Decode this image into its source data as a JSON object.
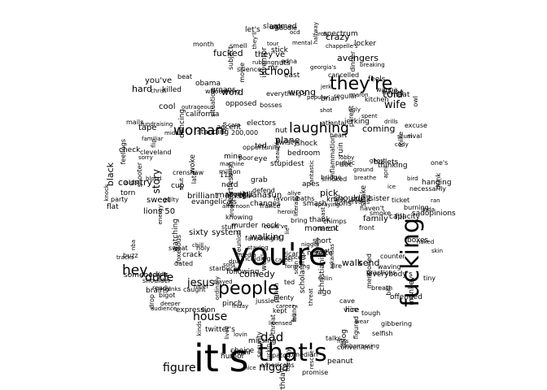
{
  "big_words": {
    "its": "it's",
    "youre": "you're",
    "people": "people",
    "thats": "that's",
    "theyre": "they're",
    "fucking": "fucking",
    "laughing": "laughing",
    "woman": "woman",
    "hey": "hey",
    "dude": "dude",
    "dad": "dad",
    "jesus": "jesus",
    "house": "house",
    "nigga": "nigga",
    "figure": "figure",
    "school": "school",
    "told": "told",
    "wife": "wife",
    "coming": "coming",
    "fucked": "fucked",
    "theyve": "they've",
    "youve": "you've",
    "hard": "hard",
    "cool": "cool",
    "country": "country",
    "story": "story",
    "walking": "walking",
    "comedy": "comedy",
    "word": "word",
    "black": "black",
    "crazy": "crazy",
    "avengers": "avengers",
    "walk": "walk",
    "send": "send",
    "family": "family",
    "fill": "fill",
    "moment": "moment",
    "plane": "plane",
    "pick": "pick",
    "lions": "lions 50",
    "sixty": "sixty",
    "system": "system",
    "brilliant": "brilliant",
    "marvel": "marvel",
    "iguanas": "iguanas",
    "fun": "fun",
    "sweet": "sweet",
    "tape": "tape",
    "wrong": "wrong",
    "shouldnt": "shouldn't"
  },
  "small_words": [
    "11",
    "jackson",
    "holy",
    "counter",
    "vice",
    "skin",
    "tracks",
    "cleveland",
    "ice",
    "including",
    "fanstraight",
    "spent",
    "ready",
    "fell",
    "pilots",
    "pinch",
    "regular",
    "tuesday",
    "ocd",
    "feels",
    "smoke",
    "trunks",
    "alive",
    "knowing",
    "kitchen",
    "iron",
    "wear",
    "heart",
    "roast",
    "dinner",
    "front",
    "sold",
    "christianity",
    "mentioned",
    "france",
    "everything's",
    "accent",
    "fantastic",
    "could've",
    "caught",
    "stuff",
    "party",
    "one's",
    "smell",
    "necessarily",
    "tiny",
    "bigot",
    "buzz",
    "hitler",
    "figured",
    "shut",
    "it'll",
    "care",
    "drills",
    "ago",
    "heartless",
    "kept",
    "spraying",
    "feelings",
    "hung",
    "they'll",
    "jussie",
    "evangelicals",
    "bullets",
    "murder",
    "rubbing",
    "ordinary",
    "killed",
    "machine",
    "standing",
    "million",
    "mr",
    "reunion",
    "excuse",
    "parent",
    "following",
    "played",
    "dancing",
    "cave",
    "blood",
    "situation",
    "energy",
    "marc.k",
    "month",
    "ran",
    "nuts",
    "lived",
    "starbucks",
    "tough",
    "career",
    "licensed",
    "smoked",
    "shoot",
    "staying",
    "jerk",
    "opposed",
    "patch",
    "sweat",
    "guilty",
    "electors",
    "nba",
    "favorite",
    "neck",
    "defend",
    "subject",
    "spectrum",
    "audience",
    "crack",
    "georgia's",
    "poor",
    "waving",
    "bird",
    "ground",
    "drop",
    "linda",
    "baths",
    "literally",
    "flip",
    "afternoon",
    "familiar",
    "humor",
    "lions",
    "edna",
    "ruin",
    "choice",
    "plenty",
    "sister",
    "hanging",
    "science",
    "stupid",
    "stick",
    "halfway",
    "foxelious",
    "punch",
    "fallin",
    "bill",
    "nigger",
    "attempt",
    "thinking",
    "selfish",
    "drown",
    "200,000",
    "jerking",
    "hoodie",
    "wanna",
    "knee",
    "shake",
    "missing",
    "rescue",
    "breaking",
    "shooter",
    "minute",
    "stuck",
    "friday",
    "aids",
    "grown",
    "security",
    "ghost",
    "inflammation",
    "monkey",
    "breath",
    "public",
    "shoulder",
    "ted",
    "scum",
    "doc",
    "fly",
    "woke",
    "lovin",
    "inventor",
    "torn",
    "convenient",
    "nerd",
    "brains",
    "threat",
    "dated",
    "apes",
    "scholarship",
    "capacity",
    "twisty",
    "outrageous",
    "naked",
    "sorry",
    "career",
    "bring",
    "april",
    "bosses",
    "drink",
    "eye",
    "let's",
    "vicar",
    "drug",
    "owl",
    "late",
    "whooshing",
    "bridge",
    "grab",
    "fuckin",
    "flat",
    "chimps",
    "brian",
    "ted",
    "mine",
    "haven't",
    "cancelled",
    "meat",
    "knock",
    "mike",
    "fundraising",
    "breathe",
    "forgiving",
    "kinds",
    "boxes",
    "expression",
    "atlanta",
    "somebody's",
    "smash",
    "beautiful",
    "mental",
    "raising",
    "slammed",
    "tour",
    "middle",
    "watching",
    "burning",
    "bedroom",
    "laugh",
    "birthday",
    "heroin",
    "chappelle's",
    "everybody's",
    "changes",
    "nut",
    "americans",
    "comedian",
    "offended",
    "deeper",
    "peanut",
    "crenshaw",
    "gibbering",
    "nervous",
    "movie",
    "embarrassing",
    "media",
    "weak",
    "threat",
    "maron",
    "cody",
    "locker",
    "promise",
    "twitter's",
    "east",
    "arkansas",
    "short",
    "groans",
    "files",
    "ticket",
    "talks",
    "practices",
    "california",
    "sadopinions",
    "check",
    "beat",
    "popular",
    "blog",
    "stupidest",
    "pence's",
    "obama",
    "mails",
    "rival",
    "idea",
    "shock",
    "christ",
    "shot",
    "fire",
    "lobby",
    "ugly",
    "lie",
    "cup",
    "chill",
    "opportunity",
    "thank",
    "hire",
    "soon",
    "nice",
    "ugh"
  ]
}
